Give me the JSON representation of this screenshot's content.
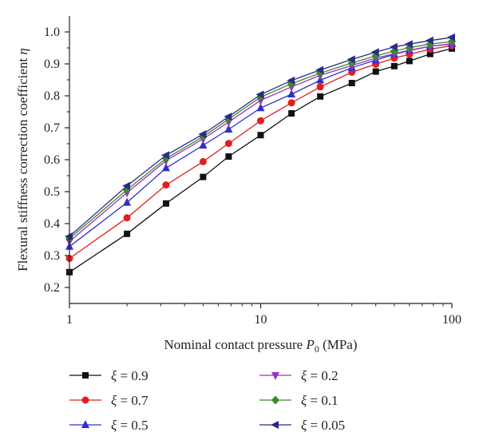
{
  "chart_data": {
    "type": "line",
    "xscale": "log",
    "xlim": [
      1,
      100
    ],
    "ylim": [
      0.15,
      1.05
    ],
    "xticks": [
      1,
      10,
      100
    ],
    "xtick_labels": [
      "1",
      "10",
      "100"
    ],
    "yticks": [
      0.2,
      0.3,
      0.4,
      0.5,
      0.6,
      0.7,
      0.8,
      0.9,
      1.0
    ],
    "ytick_labels": [
      "0.2",
      "0.3",
      "0.4",
      "0.5",
      "0.6",
      "0.7",
      "0.8",
      "0.9",
      "1.0"
    ],
    "xlabel": {
      "main": "Nominal contact pressure ",
      "var": "P",
      "sub": "0",
      "unit": " (MPa)"
    },
    "ylabel": {
      "main": "Flexural stiffness correction coefficient ",
      "var": "η"
    },
    "grid": false,
    "legend_position": "bottom",
    "x": [
      1,
      2,
      3.2,
      5,
      6.8,
      10,
      14.5,
      20.5,
      30,
      40,
      50,
      60,
      77,
      100
    ],
    "series": [
      {
        "name": "ξ = 0.9",
        "label_var": "ξ",
        "label_val": " = 0.9",
        "color": "#111111",
        "marker": "square",
        "values": [
          0.248,
          0.368,
          0.463,
          0.546,
          0.61,
          0.677,
          0.745,
          0.798,
          0.84,
          0.876,
          0.893,
          0.909,
          0.931,
          0.948
        ]
      },
      {
        "name": "ξ = 0.7",
        "label_var": "ξ",
        "label_val": " = 0.7",
        "color": "#e02020",
        "marker": "circle",
        "values": [
          0.291,
          0.418,
          0.521,
          0.594,
          0.651,
          0.722,
          0.778,
          0.828,
          0.874,
          0.899,
          0.918,
          0.93,
          0.946,
          0.957
        ]
      },
      {
        "name": "ξ = 0.5",
        "label_var": "ξ",
        "label_val": " = 0.5",
        "color": "#3030c8",
        "marker": "triangle-up",
        "values": [
          0.328,
          0.466,
          0.574,
          0.645,
          0.695,
          0.762,
          0.805,
          0.849,
          0.888,
          0.912,
          0.93,
          0.942,
          0.955,
          0.963
        ]
      },
      {
        "name": "ξ = 0.2",
        "label_var": "ξ",
        "label_val": " = 0.2",
        "color": "#a030c0",
        "marker": "triangle-down",
        "values": [
          0.344,
          0.497,
          0.597,
          0.665,
          0.718,
          0.786,
          0.828,
          0.864,
          0.895,
          0.918,
          0.932,
          0.943,
          0.955,
          0.962
        ]
      },
      {
        "name": "ξ = 0.1",
        "label_var": "ξ",
        "label_val": " = 0.1",
        "color": "#3a8a2a",
        "marker": "diamond",
        "values": [
          0.353,
          0.506,
          0.604,
          0.672,
          0.727,
          0.796,
          0.838,
          0.871,
          0.903,
          0.925,
          0.94,
          0.951,
          0.962,
          0.97
        ]
      },
      {
        "name": "ξ = 0.05",
        "label_var": "ξ",
        "label_val": " = 0.05",
        "color": "#2a2a8a",
        "marker": "triangle-left",
        "values": [
          0.36,
          0.518,
          0.614,
          0.68,
          0.735,
          0.804,
          0.848,
          0.881,
          0.914,
          0.937,
          0.953,
          0.962,
          0.973,
          0.983
        ]
      }
    ]
  }
}
